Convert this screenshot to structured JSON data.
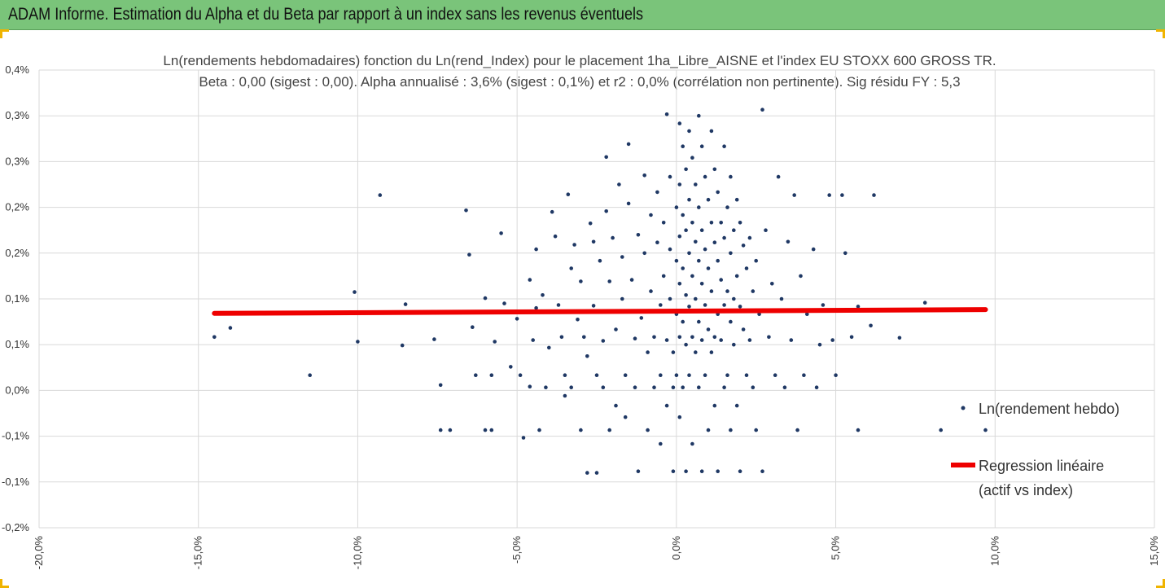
{
  "header": {
    "title": "ADAM Informe. Estimation du Alpha et du Beta par rapport à un index sans les revenus éventuels",
    "background": "#7ac47a"
  },
  "chart_data": {
    "type": "scatter",
    "title": "Ln(rendements hebdomadaires) fonction du Ln(rend_Index) pour le placement 1ha_Libre_AISNE et l'index EU STOXX 600 GROSS TR.",
    "subtitle": "Beta : 0,00 (sigest : 0,00). Alpha annualisé : 3,6% (sigest : 0,1%) et r2 : 0,0% (corrélation non pertinente). Sig résidu FY : 5,3",
    "xlabel": "",
    "ylabel": "",
    "xlim": [
      -0.2,
      0.15
    ],
    "ylim": [
      -0.002,
      0.004
    ],
    "x_ticks": [
      "-20,0%",
      "-15,0%",
      "-10,0%",
      "-5,0%",
      "0,0%",
      "5,0%",
      "10,0%",
      "15,0%"
    ],
    "y_ticks": [
      "-0,2%",
      "-0,1%",
      "-0,1%",
      "0,0%",
      "0,1%",
      "0,1%",
      "0,2%",
      "0,2%",
      "0,3%",
      "0,3%",
      "0,4%"
    ],
    "grid": true,
    "legend_position": "right",
    "series": [
      {
        "name": "Ln(rendement hebdo)",
        "kind": "points",
        "color": "#1f3864",
        "points": [
          [
            -0.145,
            0.0005
          ],
          [
            -0.14,
            0.00062
          ],
          [
            -0.093,
            0.00236
          ],
          [
            -0.101,
            0.00109
          ],
          [
            -0.1,
            0.00044
          ],
          [
            -0.085,
            0.00093
          ],
          [
            -0.086,
            0.00039
          ],
          [
            -0.115,
            0.0
          ],
          [
            -0.076,
            0.00047
          ],
          [
            -0.074,
            -0.00013
          ],
          [
            -0.074,
            -0.00072
          ],
          [
            -0.071,
            -0.00072
          ],
          [
            -0.066,
            0.00216
          ],
          [
            -0.065,
            0.00158
          ],
          [
            -0.064,
            0.00063
          ],
          [
            -0.063,
            0.0
          ],
          [
            -0.06,
            0.00101
          ],
          [
            -0.06,
            -0.00072
          ],
          [
            -0.058,
            0.0
          ],
          [
            -0.058,
            -0.00072
          ],
          [
            -0.057,
            0.00044
          ],
          [
            -0.055,
            0.00186
          ],
          [
            -0.054,
            0.00094
          ],
          [
            -0.052,
            0.00011
          ],
          [
            -0.05,
            0.00074
          ],
          [
            -0.049,
            0.0
          ],
          [
            -0.048,
            -0.00082
          ],
          [
            -0.046,
            -0.00015
          ],
          [
            -0.046,
            0.00125
          ],
          [
            -0.045,
            0.00046
          ],
          [
            -0.044,
            0.00165
          ],
          [
            -0.044,
            0.00088
          ],
          [
            -0.043,
            -0.00072
          ],
          [
            -0.042,
            0.00105
          ],
          [
            -0.041,
            -0.00016
          ],
          [
            -0.04,
            0.00036
          ],
          [
            -0.039,
            0.00214
          ],
          [
            -0.038,
            0.00182
          ],
          [
            -0.037,
            0.00092
          ],
          [
            -0.036,
            0.0005
          ],
          [
            -0.035,
            0.0
          ],
          [
            -0.035,
            -0.00027
          ],
          [
            -0.034,
            0.00237
          ],
          [
            -0.033,
            0.0014
          ],
          [
            -0.033,
            -0.00016
          ],
          [
            -0.032,
            0.00171
          ],
          [
            -0.031,
            0.00073
          ],
          [
            -0.03,
            0.00123
          ],
          [
            -0.03,
            -0.00072
          ],
          [
            -0.029,
            0.0005
          ],
          [
            -0.028,
            0.00025
          ],
          [
            -0.028,
            -0.00128
          ],
          [
            -0.027,
            0.00199
          ],
          [
            -0.026,
            0.00175
          ],
          [
            -0.026,
            0.00091
          ],
          [
            -0.025,
            0.0
          ],
          [
            -0.025,
            -0.00128
          ],
          [
            -0.024,
            0.0015
          ],
          [
            -0.023,
            0.00045
          ],
          [
            -0.023,
            -0.00016
          ],
          [
            -0.022,
            0.00286
          ],
          [
            -0.022,
            0.00215
          ],
          [
            -0.021,
            0.00123
          ],
          [
            -0.021,
            -0.00072
          ],
          [
            -0.02,
            0.0018
          ],
          [
            -0.019,
            0.0006
          ],
          [
            -0.019,
            -0.0004
          ],
          [
            -0.018,
            0.0025
          ],
          [
            -0.017,
            0.00155
          ],
          [
            -0.017,
            0.001
          ],
          [
            -0.016,
            0.0
          ],
          [
            -0.016,
            -0.00055
          ],
          [
            -0.015,
            0.00303
          ],
          [
            -0.015,
            0.00225
          ],
          [
            -0.014,
            0.00125
          ],
          [
            -0.013,
            0.00048
          ],
          [
            -0.013,
            -0.00016
          ],
          [
            -0.012,
            -0.00126
          ],
          [
            -0.012,
            0.00184
          ],
          [
            -0.011,
            0.00075
          ],
          [
            -0.01,
            0.00262
          ],
          [
            -0.01,
            0.0016
          ],
          [
            -0.009,
            0.0003
          ],
          [
            -0.009,
            -0.00072
          ],
          [
            -0.008,
            0.0021
          ],
          [
            -0.008,
            0.0011
          ],
          [
            -0.007,
            0.0005
          ],
          [
            -0.007,
            -0.00016
          ],
          [
            -0.006,
            0.0024
          ],
          [
            -0.006,
            0.00174
          ],
          [
            -0.005,
            0.00092
          ],
          [
            -0.005,
            0.0
          ],
          [
            -0.005,
            -0.0009
          ],
          [
            -0.004,
            0.002
          ],
          [
            -0.004,
            0.0013
          ],
          [
            -0.003,
            0.00046
          ],
          [
            -0.003,
            -0.0004
          ],
          [
            -0.003,
            0.00342
          ],
          [
            -0.002,
            0.0026
          ],
          [
            -0.002,
            0.00165
          ],
          [
            -0.002,
            0.001
          ],
          [
            -0.001,
            0.0003
          ],
          [
            -0.001,
            -0.00016
          ],
          [
            -0.001,
            -0.00126
          ],
          [
            0.0,
            0.0022
          ],
          [
            0.0,
            0.0015
          ],
          [
            0.0,
            0.0008
          ],
          [
            0.0,
            0.0
          ],
          [
            0.001,
            0.0033
          ],
          [
            0.001,
            0.0025
          ],
          [
            0.001,
            0.00182
          ],
          [
            0.001,
            0.0012
          ],
          [
            0.001,
            0.0005
          ],
          [
            0.001,
            -0.00055
          ],
          [
            0.002,
            0.003
          ],
          [
            0.002,
            0.0021
          ],
          [
            0.002,
            0.0014
          ],
          [
            0.002,
            0.0007
          ],
          [
            0.002,
            -0.00016
          ],
          [
            0.003,
            0.0027
          ],
          [
            0.003,
            0.0019
          ],
          [
            0.003,
            0.00105
          ],
          [
            0.003,
            0.0004
          ],
          [
            0.003,
            -0.00126
          ],
          [
            0.004,
            0.0032
          ],
          [
            0.004,
            0.0023
          ],
          [
            0.004,
            0.0016
          ],
          [
            0.004,
            0.0009
          ],
          [
            0.004,
            0.0
          ],
          [
            0.005,
            0.00285
          ],
          [
            0.005,
            0.002
          ],
          [
            0.005,
            0.0013
          ],
          [
            0.005,
            0.0005
          ],
          [
            0.005,
            -0.0009
          ],
          [
            0.006,
            0.0025
          ],
          [
            0.006,
            0.00175
          ],
          [
            0.006,
            0.001
          ],
          [
            0.006,
            0.0003
          ],
          [
            0.007,
            0.0034
          ],
          [
            0.007,
            0.0022
          ],
          [
            0.007,
            0.0015
          ],
          [
            0.007,
            0.0007
          ],
          [
            0.007,
            -0.00016
          ],
          [
            0.008,
            0.003
          ],
          [
            0.008,
            0.0019
          ],
          [
            0.008,
            0.0012
          ],
          [
            0.008,
            0.00046
          ],
          [
            0.008,
            -0.00126
          ],
          [
            0.009,
            0.0026
          ],
          [
            0.009,
            0.00165
          ],
          [
            0.009,
            0.00092
          ],
          [
            0.009,
            0.0
          ],
          [
            0.01,
            0.0023
          ],
          [
            0.01,
            0.0014
          ],
          [
            0.01,
            0.0006
          ],
          [
            0.01,
            -0.00072
          ],
          [
            0.011,
            0.0032
          ],
          [
            0.011,
            0.002
          ],
          [
            0.011,
            0.0011
          ],
          [
            0.011,
            0.0003
          ],
          [
            0.012,
            0.0027
          ],
          [
            0.012,
            0.00174
          ],
          [
            0.012,
            0.0005
          ],
          [
            0.012,
            -0.0004
          ],
          [
            0.013,
            0.0024
          ],
          [
            0.013,
            0.0015
          ],
          [
            0.013,
            0.0008
          ],
          [
            0.013,
            -0.00126
          ],
          [
            0.014,
            0.002
          ],
          [
            0.014,
            0.00125
          ],
          [
            0.014,
            0.00046
          ],
          [
            0.015,
            0.003
          ],
          [
            0.015,
            0.0018
          ],
          [
            0.015,
            0.00092
          ],
          [
            0.015,
            -0.00016
          ],
          [
            0.016,
            0.0022
          ],
          [
            0.016,
            0.0011
          ],
          [
            0.016,
            0.0
          ],
          [
            0.017,
            0.0026
          ],
          [
            0.017,
            0.0016
          ],
          [
            0.017,
            0.0007
          ],
          [
            0.017,
            -0.00072
          ],
          [
            0.018,
            0.0019
          ],
          [
            0.018,
            0.001
          ],
          [
            0.018,
            0.0004
          ],
          [
            0.019,
            0.0023
          ],
          [
            0.019,
            0.0013
          ],
          [
            0.019,
            -0.0004
          ],
          [
            0.02,
            0.002
          ],
          [
            0.02,
            0.0009
          ],
          [
            0.02,
            -0.00126
          ],
          [
            0.021,
            0.0017
          ],
          [
            0.021,
            0.0006
          ],
          [
            0.022,
            0.0014
          ],
          [
            0.022,
            0.0
          ],
          [
            0.023,
            0.0018
          ],
          [
            0.023,
            0.00046
          ],
          [
            0.024,
            0.0011
          ],
          [
            0.024,
            -0.00016
          ],
          [
            0.025,
            0.0015
          ],
          [
            0.025,
            -0.00072
          ],
          [
            0.026,
            0.0008
          ],
          [
            0.027,
            0.00348
          ],
          [
            0.027,
            -0.00126
          ],
          [
            0.028,
            0.0019
          ],
          [
            0.029,
            0.0005
          ],
          [
            0.03,
            0.0012
          ],
          [
            0.031,
            0.0
          ],
          [
            0.032,
            0.0026
          ],
          [
            0.033,
            0.001
          ],
          [
            0.034,
            -0.00016
          ],
          [
            0.035,
            0.00175
          ],
          [
            0.036,
            0.00046
          ],
          [
            0.037,
            0.00236
          ],
          [
            0.038,
            -0.00072
          ],
          [
            0.039,
            0.0013
          ],
          [
            0.04,
            0.0
          ],
          [
            0.041,
            0.0008
          ],
          [
            0.043,
            0.00165
          ],
          [
            0.044,
            -0.00016
          ],
          [
            0.045,
            0.0004
          ],
          [
            0.046,
            0.00092
          ],
          [
            0.048,
            0.00236
          ],
          [
            0.049,
            0.00046
          ],
          [
            0.05,
            0.0
          ],
          [
            0.052,
            0.00236
          ],
          [
            0.053,
            0.0016
          ],
          [
            0.055,
            0.0005
          ],
          [
            0.057,
            0.0009
          ],
          [
            0.057,
            -0.00072
          ],
          [
            0.061,
            0.00065
          ],
          [
            0.062,
            0.00236
          ],
          [
            0.07,
            0.00049
          ],
          [
            0.078,
            0.00095
          ],
          [
            0.083,
            -0.00072
          ],
          [
            0.097,
            -0.00072
          ]
        ]
      },
      {
        "name": "Regression linéaire (actif vs index)",
        "kind": "line",
        "color": "#ee0000",
        "points": [
          [
            -0.145,
            0.00081
          ],
          [
            0.097,
            0.00086
          ]
        ]
      }
    ],
    "legend": [
      {
        "label": "Ln(rendement hebdo)",
        "marker": "point",
        "color": "#1f3864"
      },
      {
        "label_lines": [
          "Regression linéaire",
          "(actif vs index)"
        ],
        "marker": "line",
        "color": "#ee0000"
      }
    ]
  }
}
